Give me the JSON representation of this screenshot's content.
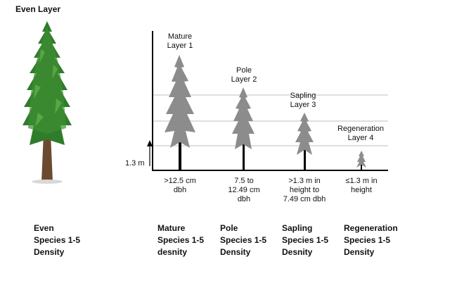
{
  "title": "Even Layer",
  "axis_label": "1.3 m",
  "layers": [
    {
      "top1": "Mature",
      "top2": "Layer 1",
      "bottom": [
        ">12.5 cm",
        "dbh"
      ]
    },
    {
      "top1": "Pole",
      "top2": "Layer 2",
      "bottom": [
        "7.5 to",
        "12.49 cm",
        "dbh"
      ]
    },
    {
      "top1": "Sapling",
      "top2": "Layer 3",
      "bottom": [
        ">1.3 m in",
        "height to",
        "7.49 cm dbh"
      ]
    },
    {
      "top1": "Regeneration",
      "top2": "Layer 4",
      "bottom": [
        "≤1.3 m in",
        "height"
      ]
    }
  ],
  "columns": [
    {
      "name": "Even",
      "l2": "Species 1-5",
      "l3": "Density"
    },
    {
      "name": "Mature",
      "l2": "Species 1-5",
      "l3": "desnity"
    },
    {
      "name": "Pole",
      "l2": "Species 1-5",
      "l3": "Density"
    },
    {
      "name": "Sapling",
      "l2": "Species 1-5",
      "l3": "Desnity"
    },
    {
      "name": "Regeneration",
      "l2": "Species 1-5",
      "l3": "Density"
    }
  ],
  "colors": {
    "foliage": "#2f7d2a",
    "foliage_light": "#5aa545",
    "trunk": "#6b4a2f",
    "silhouette": "#8c8c8c",
    "axis": "#000000",
    "gridline": "#bfbfbf"
  }
}
